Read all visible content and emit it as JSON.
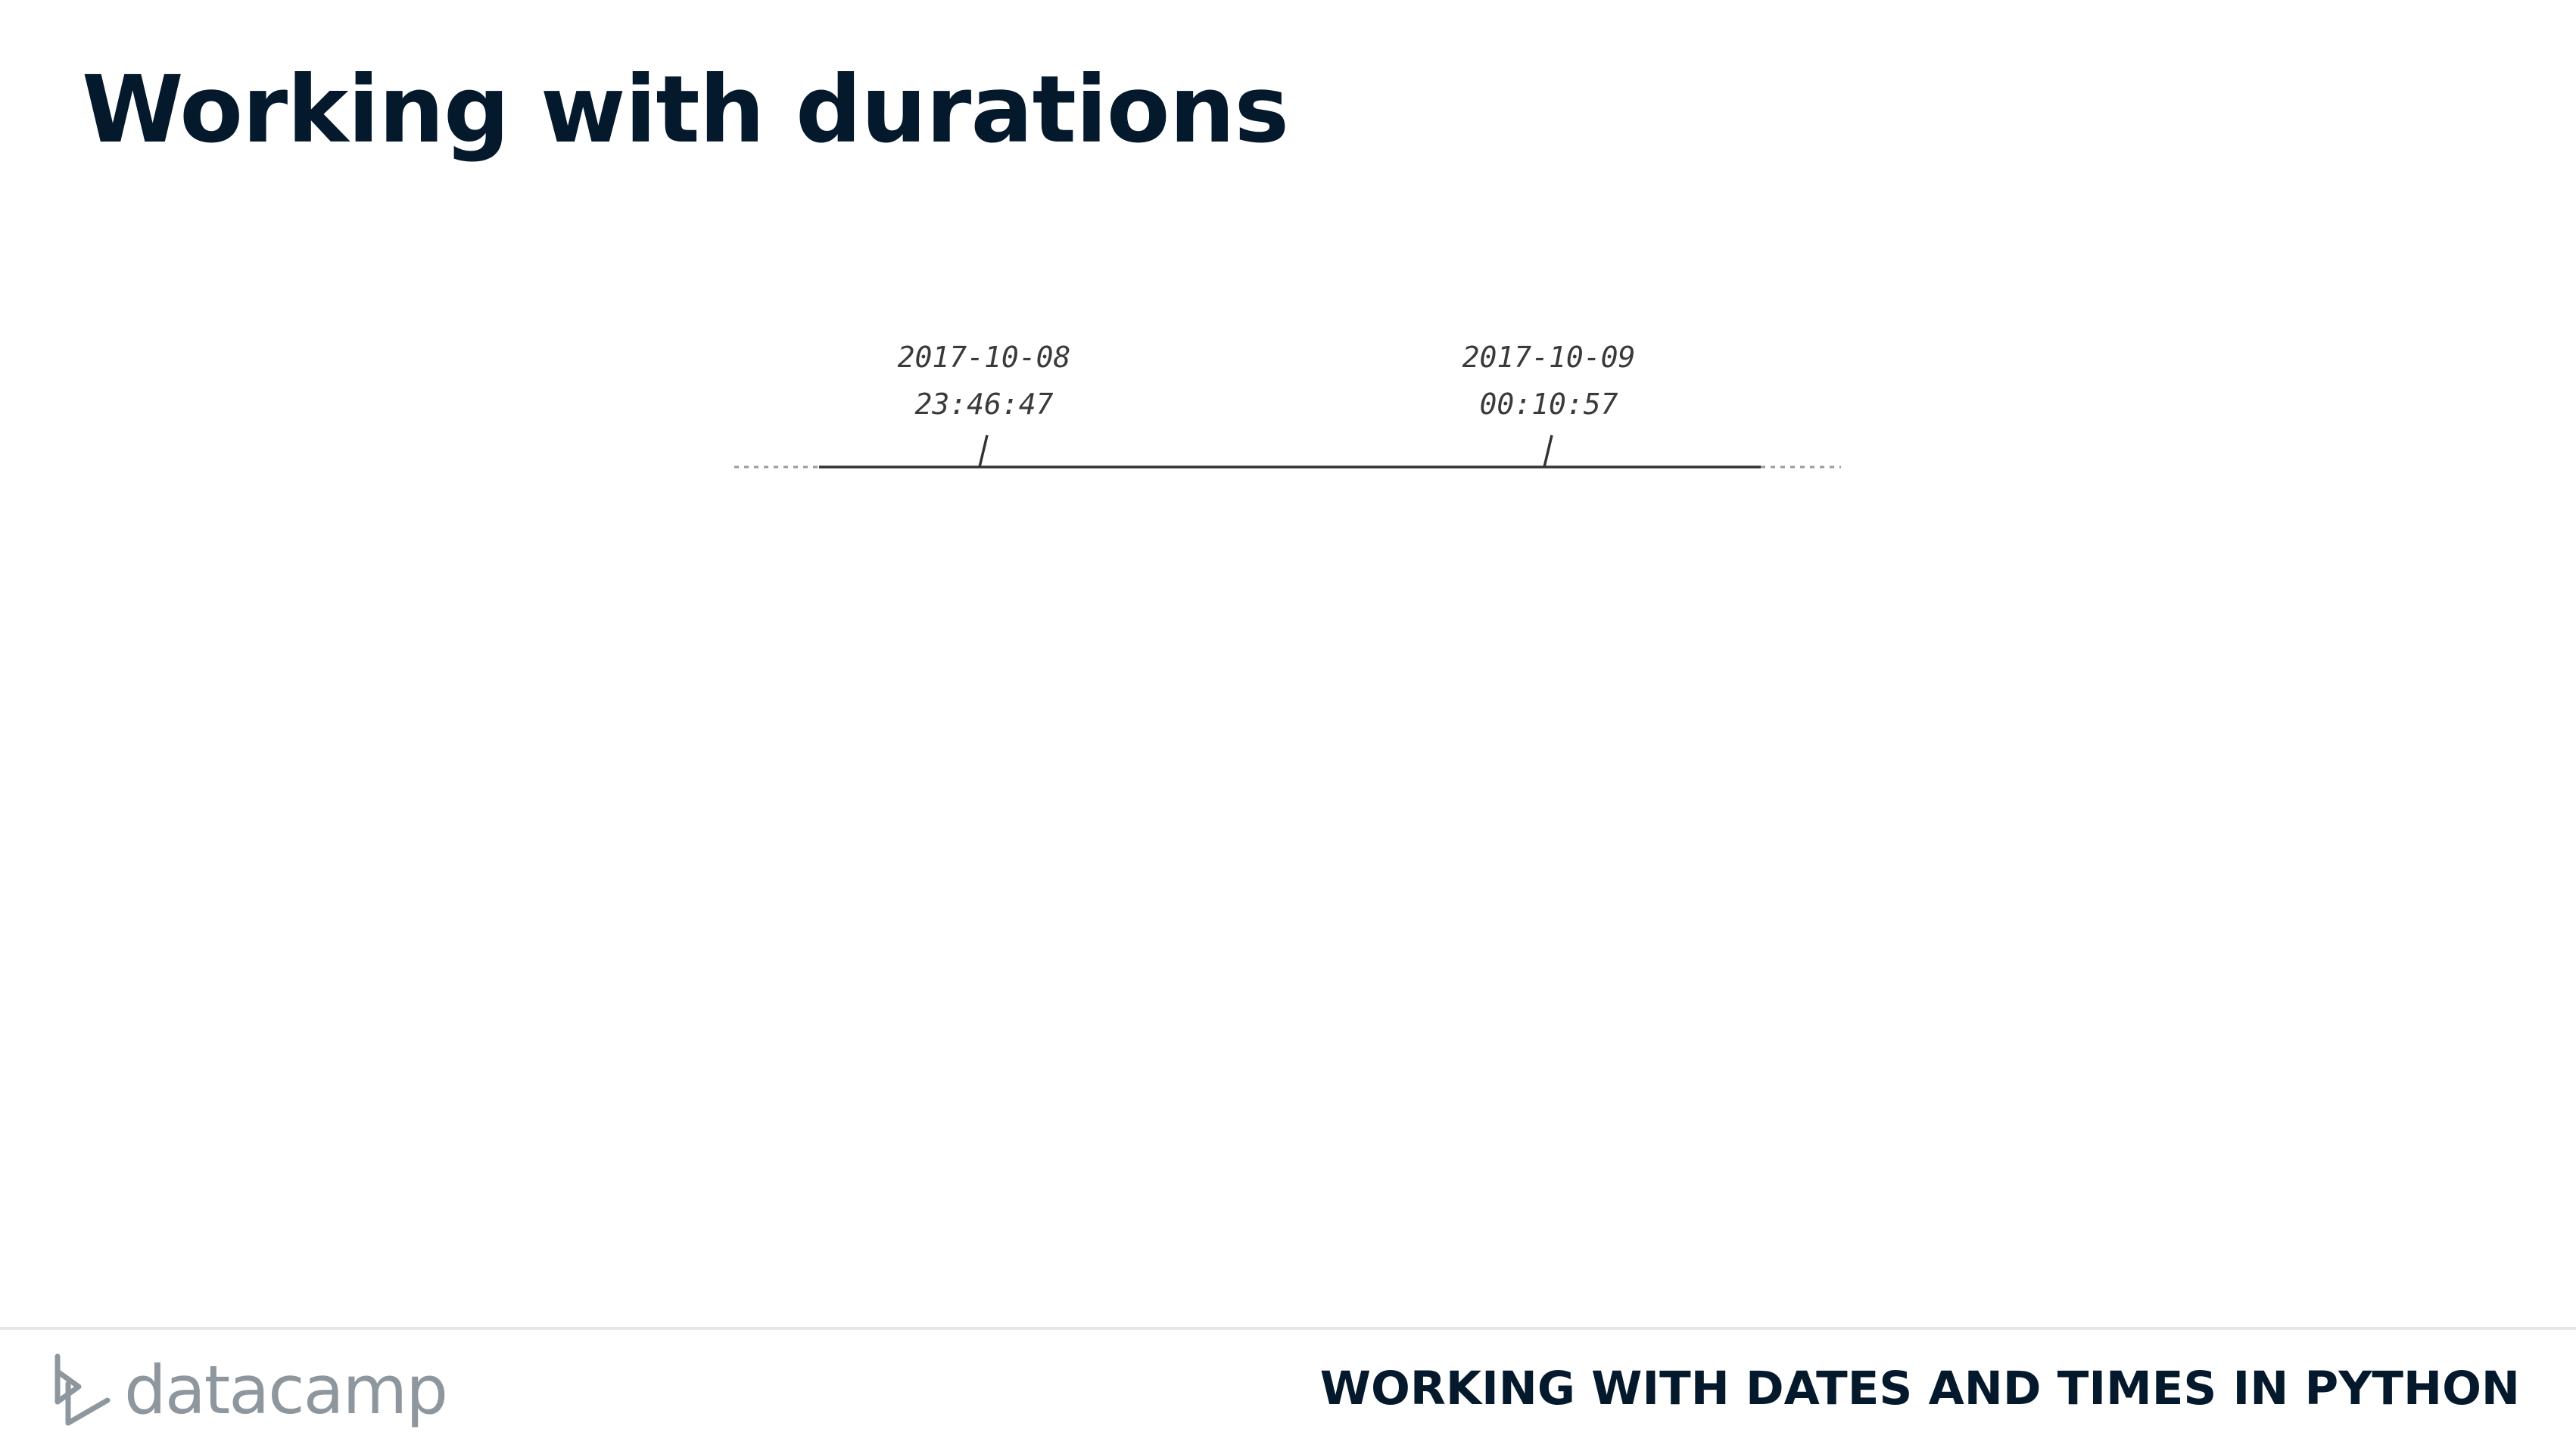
{
  "slide": {
    "title": "Working with durations"
  },
  "timeline": {
    "events": [
      {
        "date": "2017-10-08",
        "time": "23:46:47"
      },
      {
        "date": "2017-10-09",
        "time": "00:10:57"
      }
    ]
  },
  "footer": {
    "logo_text": "datacamp",
    "course_title": "WORKING WITH DATES AND TIMES IN PYTHON"
  },
  "colors": {
    "title": "#05192d",
    "logo": "#8e979e",
    "line": "#333333",
    "dotted": "#999999"
  }
}
